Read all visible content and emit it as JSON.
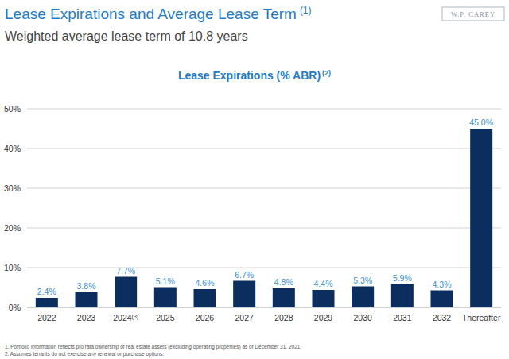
{
  "chart_data": {
    "type": "bar",
    "title": "Lease Expirations and Average Lease Term",
    "title_note": "(1)",
    "subtitle": "Weighted average lease term of 10.8 years",
    "chart_title": "Lease Expirations (% ABR)",
    "chart_title_note": "(2)",
    "logo": "W.P. CAREY",
    "categories": [
      "2022",
      "2023",
      "2024",
      "2025",
      "2026",
      "2027",
      "2028",
      "2029",
      "2030",
      "2031",
      "2032",
      "Thereafter"
    ],
    "category_notes": [
      null,
      null,
      "(3)",
      null,
      null,
      null,
      null,
      null,
      null,
      null,
      null,
      null
    ],
    "values": [
      2.4,
      3.8,
      7.7,
      5.1,
      4.6,
      6.7,
      4.8,
      4.4,
      5.3,
      5.9,
      4.3,
      45.0
    ],
    "value_labels": [
      "2.4%",
      "3.8%",
      "7.7%",
      "5.1%",
      "4.6%",
      "6.7%",
      "4.8%",
      "4.4%",
      "5.3%",
      "5.9%",
      "4.3%",
      "45.0%"
    ],
    "color": "#0b2e5e",
    "ylim": [
      0,
      50
    ],
    "yticks": [
      {
        "value": 0,
        "label": "0%"
      },
      {
        "value": 10,
        "label": "10%"
      },
      {
        "value": 20,
        "label": "20%"
      },
      {
        "value": 30,
        "label": "30%"
      },
      {
        "value": 40,
        "label": "40%"
      },
      {
        "value": 50,
        "label": "50%"
      }
    ],
    "grid": true,
    "data_labels": true,
    "footnotes": [
      "1. Portfolio information reflects pro rata ownership of real estate assets (excluding operating properties) as of December 31, 2021.",
      "2. Assumes tenants do not exercise any renewal or purchase options."
    ]
  }
}
